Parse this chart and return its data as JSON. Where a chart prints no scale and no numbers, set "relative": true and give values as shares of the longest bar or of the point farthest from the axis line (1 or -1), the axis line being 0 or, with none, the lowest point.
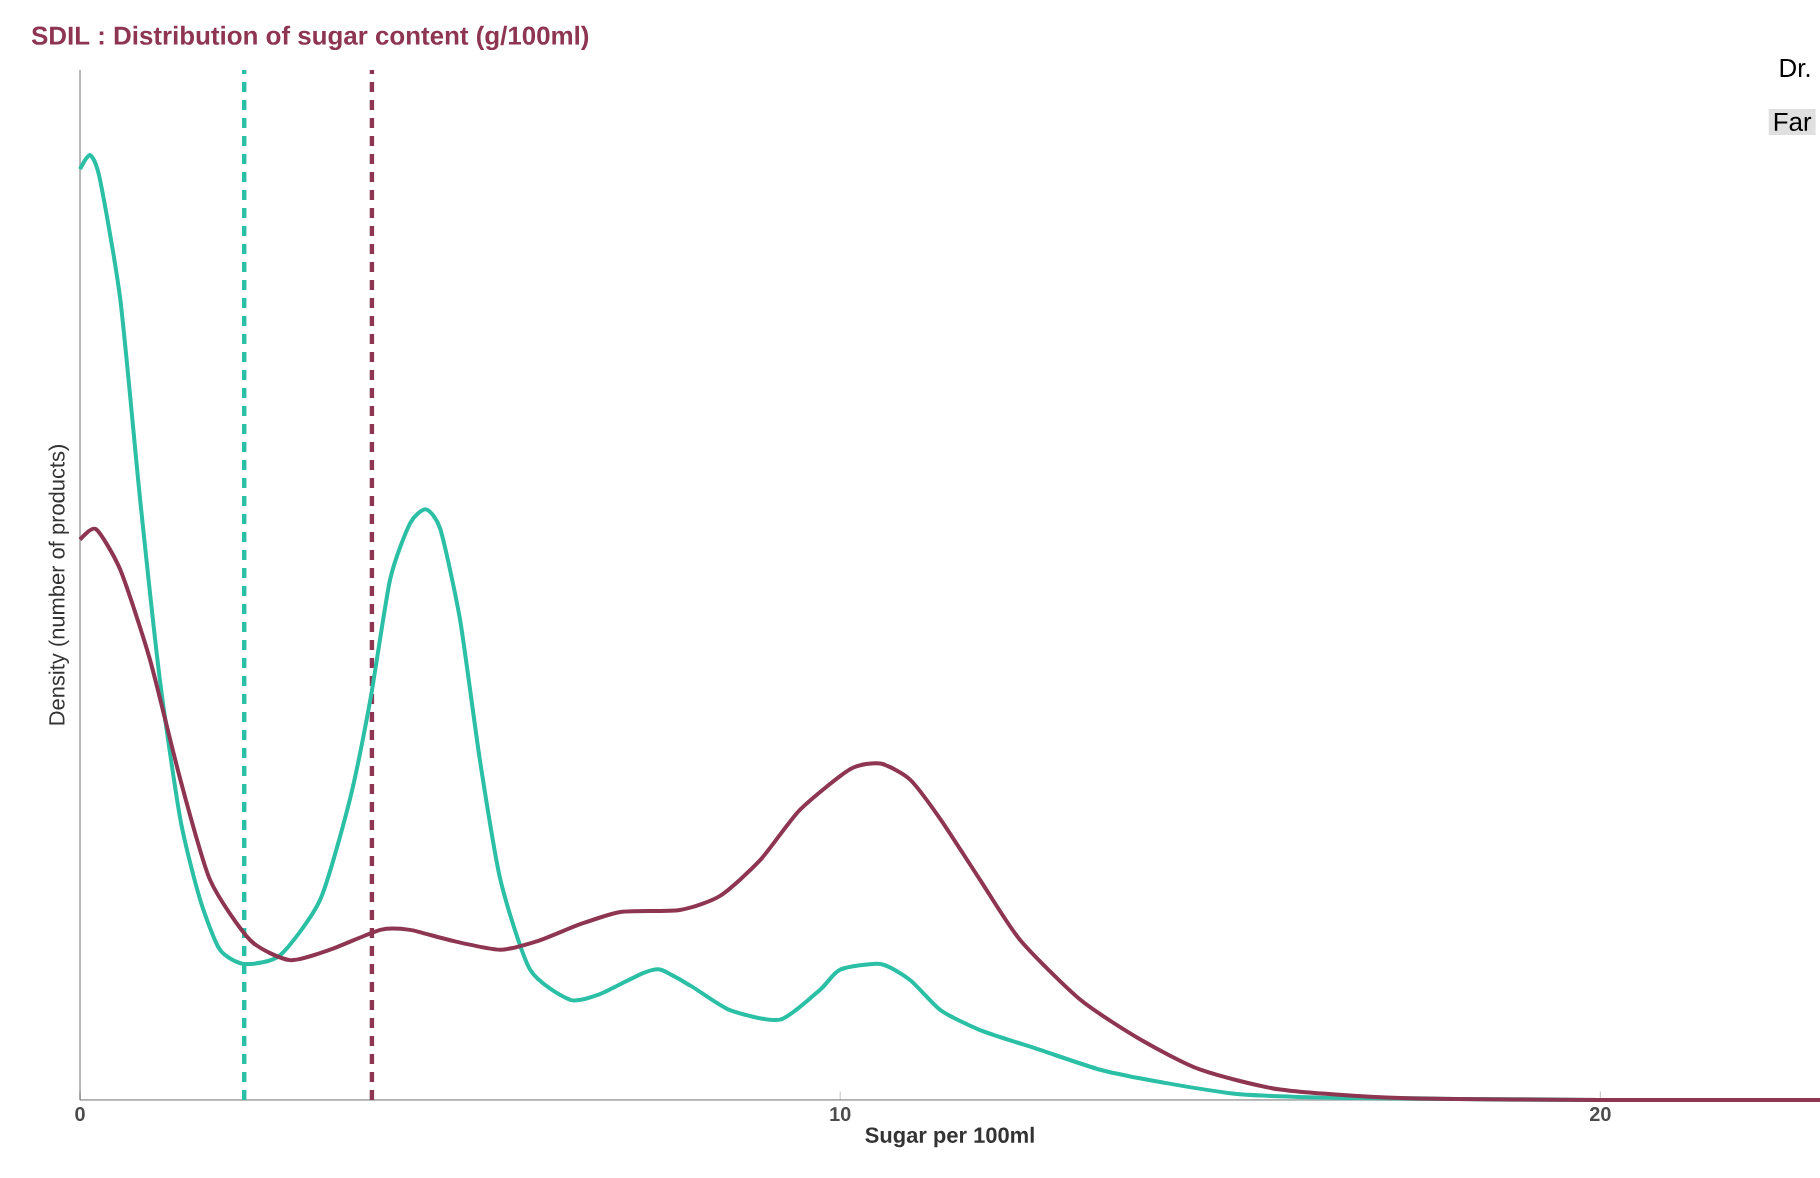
{
  "chart_data": {
    "type": "line",
    "title": "SDIL : Distribution of sugar content (g/100ml)",
    "xlabel": "Sugar per 100ml",
    "ylabel": "Density (number of products)",
    "relative": true,
    "xlim": [
      0,
      22.89
    ],
    "xticks": [
      0,
      10,
      20
    ],
    "annotations": [
      "Dr.",
      "Far"
    ],
    "ref_lines": [
      {
        "axis": "x",
        "value": 2.16,
        "color": "#2bbfa5",
        "line_style": "dashed"
      },
      {
        "axis": "x",
        "value": 3.84,
        "color": "#8e3552",
        "line_style": "dashed"
      }
    ],
    "series": [
      {
        "color": "#2bbfa5",
        "x": [
          0,
          0.13,
          0.26,
          0.53,
          0.79,
          1.05,
          1.32,
          1.58,
          1.84,
          2.16,
          2.63,
          3.16,
          3.55,
          3.82,
          4.08,
          4.34,
          4.55,
          4.74,
          5.0,
          5.26,
          5.53,
          5.92,
          6.45,
          6.84,
          7.37,
          7.63,
          8.03,
          8.55,
          9.21,
          9.74,
          10.0,
          10.53,
          10.92,
          11.32,
          11.84,
          12.63,
          13.42,
          14.21,
          15.26,
          16.84,
          20,
          22.89
        ],
        "values": [
          0.985,
          1,
          0.975,
          0.847,
          0.636,
          0.445,
          0.297,
          0.212,
          0.159,
          0.144,
          0.153,
          0.212,
          0.318,
          0.424,
          0.551,
          0.61,
          0.625,
          0.604,
          0.508,
          0.36,
          0.233,
          0.138,
          0.106,
          0.112,
          0.133,
          0.138,
          0.121,
          0.095,
          0.085,
          0.117,
          0.138,
          0.144,
          0.127,
          0.095,
          0.074,
          0.053,
          0.032,
          0.019,
          0.006,
          0.002,
          0,
          0
        ]
      },
      {
        "color": "#8e3552",
        "x": [
          0,
          0.21,
          0.53,
          0.92,
          1.32,
          1.71,
          2.24,
          2.76,
          3.29,
          3.95,
          4.34,
          4.87,
          5.53,
          6.05,
          6.58,
          7.11,
          7.89,
          8.42,
          8.95,
          9.47,
          10.13,
          10.53,
          10.92,
          11.32,
          11.84,
          12.37,
          13.16,
          13.95,
          14.74,
          15.79,
          17.37,
          20,
          22.89
        ],
        "values": [
          0.593,
          0.604,
          0.561,
          0.466,
          0.339,
          0.233,
          0.169,
          0.148,
          0.159,
          0.18,
          0.18,
          0.169,
          0.159,
          0.169,
          0.186,
          0.199,
          0.201,
          0.216,
          0.254,
          0.307,
          0.35,
          0.356,
          0.339,
          0.297,
          0.233,
          0.169,
          0.106,
          0.064,
          0.032,
          0.011,
          0.002,
          0,
          0
        ]
      }
    ]
  }
}
